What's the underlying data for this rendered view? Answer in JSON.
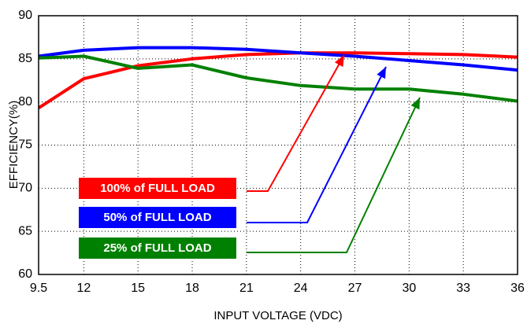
{
  "chart_data": {
    "type": "line",
    "x_label": "INPUT VOLTAGE (VDC)",
    "y_label": "EFFICIENCY(%)",
    "x": [
      9.5,
      12,
      15,
      18,
      21,
      24,
      27,
      30,
      33,
      36
    ],
    "series": [
      {
        "name": "100% of FULL LOAD",
        "color": "#ff0000",
        "values": [
          79.3,
          82.7,
          84.2,
          85.0,
          85.5,
          85.7,
          85.7,
          85.6,
          85.5,
          85.2
        ]
      },
      {
        "name": "50% of FULL LOAD",
        "color": "#0000ff",
        "values": [
          85.3,
          86.0,
          86.3,
          86.3,
          86.1,
          85.7,
          85.3,
          84.8,
          84.3,
          83.7
        ]
      },
      {
        "name": "25% of FULL LOAD",
        "color": "#008000",
        "values": [
          85.1,
          85.3,
          83.9,
          84.3,
          82.8,
          81.9,
          81.5,
          81.5,
          80.9,
          80.1
        ]
      }
    ],
    "xlim": [
      9.5,
      36
    ],
    "xticks": [
      9.5,
      12,
      15,
      18,
      21,
      24,
      27,
      30,
      33,
      36
    ],
    "ylim": [
      60,
      90
    ],
    "yticks": [
      60,
      65,
      70,
      75,
      80,
      85,
      90
    ],
    "grid": true
  }
}
